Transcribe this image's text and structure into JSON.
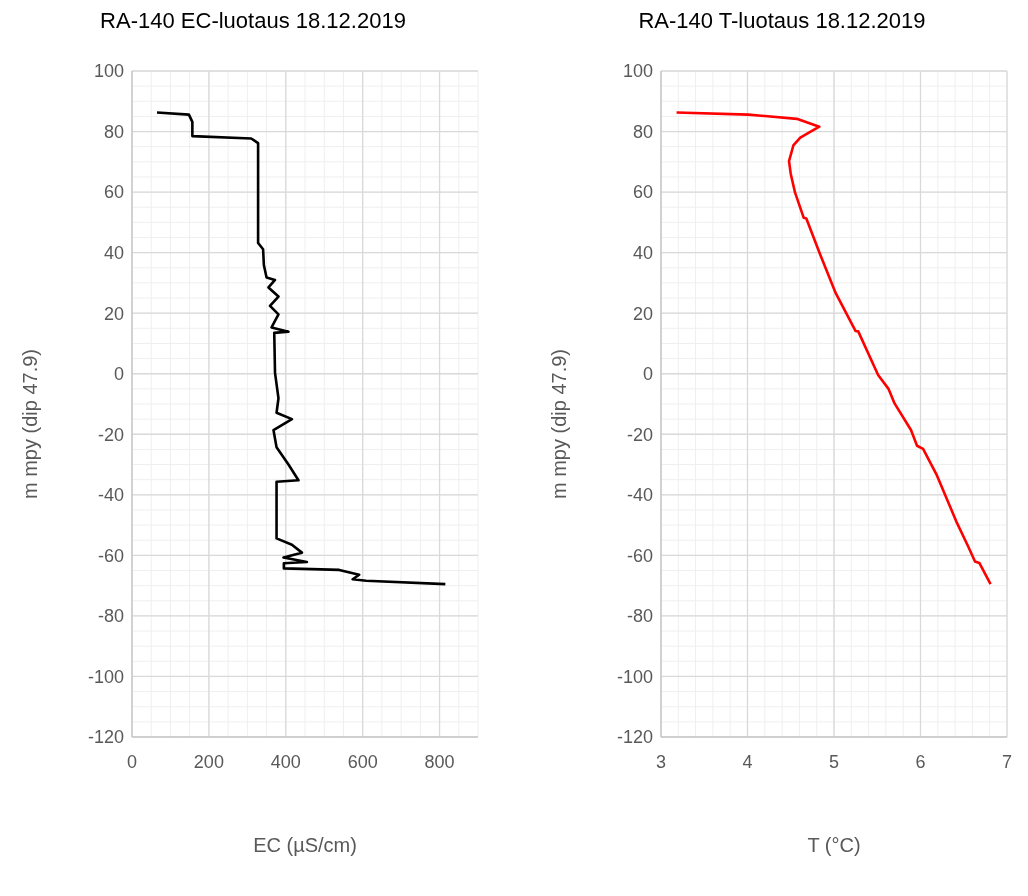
{
  "chart_data": [
    {
      "type": "line",
      "title": "RA-140 EC-luotaus 18.12.2019",
      "xlabel": "EC (µS/cm)",
      "ylabel": "m mpy (dip 47.9)",
      "color": "#000000",
      "marker": "none",
      "grid": true,
      "xlim": [
        0,
        900
      ],
      "xticks": [
        0,
        200,
        400,
        600,
        800
      ],
      "ylim": [
        -120,
        100
      ],
      "yticks": [
        -120,
        -100,
        -80,
        -60,
        -40,
        -20,
        0,
        20,
        40,
        60,
        80,
        100
      ],
      "x": [
        65,
        148,
        157,
        157,
        310,
        328,
        328,
        341,
        343,
        350,
        372,
        355,
        381,
        359,
        381,
        363,
        407,
        370,
        372,
        381,
        376,
        416,
        368,
        376,
        407,
        433,
        376,
        376,
        376,
        416,
        442,
        394,
        455,
        395,
        395,
        539,
        591,
        574,
        609,
        815
      ],
      "values": [
        86.3,
        85.6,
        83.2,
        78.5,
        77.7,
        76.2,
        43.2,
        41.1,
        35.9,
        31.8,
        31.0,
        28.5,
        25.5,
        22.4,
        19.6,
        15.3,
        13.9,
        13.5,
        0.3,
        -8.1,
        -12.9,
        -15,
        -18.6,
        -24.3,
        -30,
        -35.2,
        -35.7,
        -47.1,
        -54.4,
        -56.5,
        -59.1,
        -60.7,
        -62.2,
        -62.6,
        -64.3,
        -64.8,
        -66.4,
        -67.9,
        -68.4,
        -69.5
      ]
    },
    {
      "type": "line",
      "title": "RA-140 T-luotaus 18.12.2019",
      "xlabel": "T (°C)",
      "ylabel": "m mpy (dip 47.9)",
      "color": "#ff0000",
      "marker": "none",
      "grid": true,
      "xlim": [
        3,
        7
      ],
      "xticks": [
        3,
        4,
        5,
        6,
        7
      ],
      "ylim": [
        -120,
        100
      ],
      "yticks": [
        -120,
        -100,
        -80,
        -60,
        -40,
        -20,
        0,
        20,
        40,
        60,
        80,
        100
      ],
      "x": [
        3.18,
        4.01,
        4.57,
        4.83,
        4.61,
        4.53,
        4.48,
        4.5,
        4.55,
        4.65,
        4.68,
        4.83,
        5.02,
        5.25,
        5.28,
        5.51,
        5.63,
        5.7,
        5.89,
        5.96,
        6.03,
        6.19,
        6.42,
        6.55,
        6.63,
        6.68,
        6.81
      ],
      "values": [
        86.3,
        85.6,
        84.2,
        81.6,
        78,
        75.4,
        70.2,
        66,
        59.8,
        51.5,
        51.3,
        40.1,
        26.6,
        14.1,
        14,
        -0.4,
        -5,
        -9.8,
        -18.6,
        -23.8,
        -24.8,
        -33.6,
        -49.2,
        -57,
        -62,
        -62.5,
        -69.5
      ]
    }
  ]
}
